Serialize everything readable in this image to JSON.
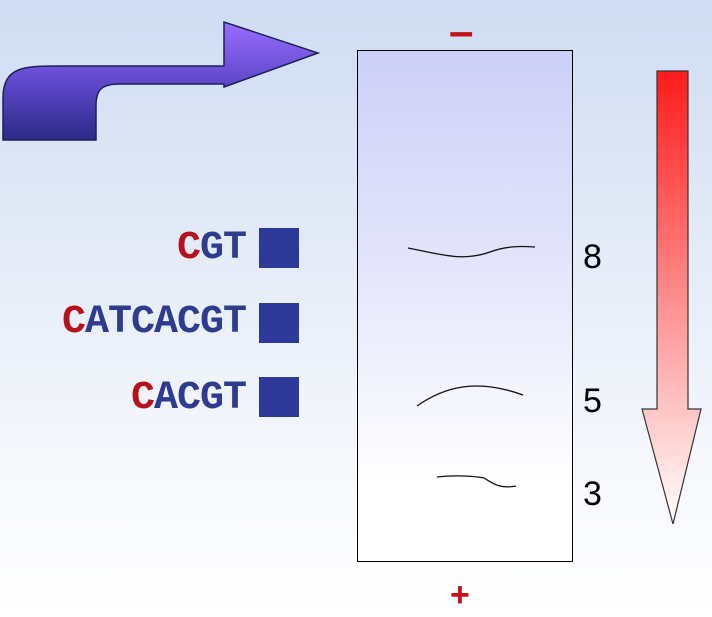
{
  "electrodes": {
    "negative": "–",
    "positive": "+"
  },
  "fragments": [
    {
      "first": "C",
      "rest": "GT"
    },
    {
      "first": "C",
      "rest": "ATCACGT"
    },
    {
      "first": "C",
      "rest": "ACGT"
    }
  ],
  "gel": {
    "size_labels": [
      "8",
      "5",
      "3"
    ]
  },
  "colors": {
    "sequence_base": "#2e3b8f",
    "sequence_first": "#b5121b",
    "label_square": "#2e3a9a",
    "loading_arrow": "#6a4fd8",
    "migration_arrow_top": "#ff1a1a",
    "electrode": "#c4121a"
  },
  "icons": {
    "loading_arrow": "curved-arrow-icon",
    "migration_arrow": "down-arrow-icon",
    "fragment_label": "square-icon"
  }
}
